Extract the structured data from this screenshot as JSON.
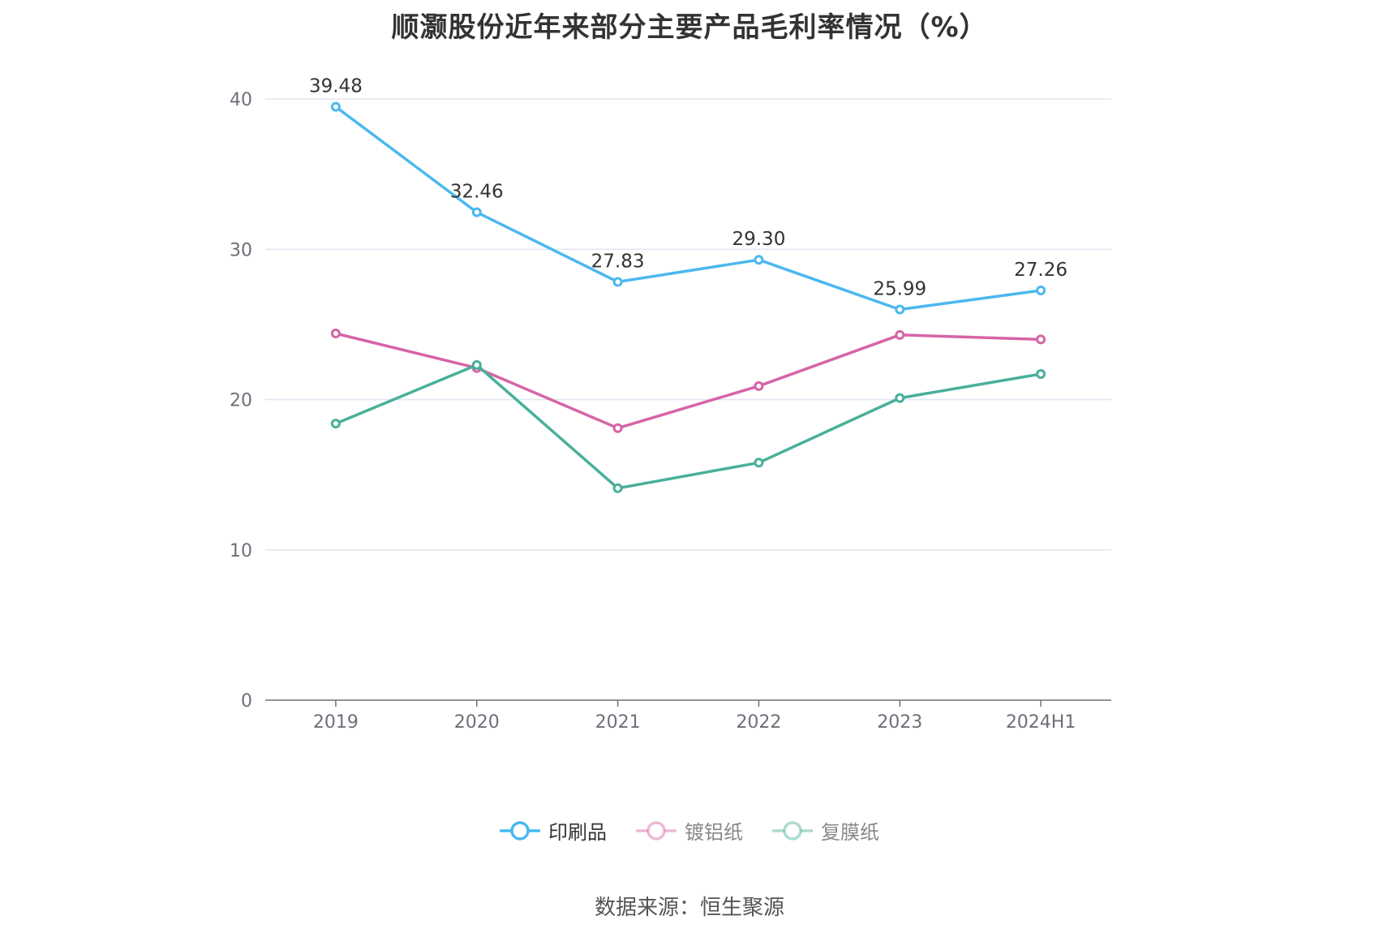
{
  "chart_data": {
    "type": "line",
    "title": "顺灏股份近年来部分主要产品毛利率情况（%）",
    "categories": [
      "2019",
      "2020",
      "2021",
      "2022",
      "2023",
      "2024H1"
    ],
    "ylim": [
      0,
      40
    ],
    "yticks": [
      0,
      10,
      20,
      30,
      40
    ],
    "grid": true,
    "legend_position": "bottom",
    "series": [
      {
        "name": "印刷品",
        "color": "#4bb8f0",
        "values": [
          39.48,
          32.46,
          27.83,
          29.3,
          25.99,
          27.26
        ],
        "labels": [
          "39.48",
          "32.46",
          "27.83",
          "29.30",
          "25.99",
          "27.26"
        ],
        "active": true
      },
      {
        "name": "镀铝纸",
        "color": "#d664a7",
        "values": [
          24.4,
          22.1,
          18.1,
          20.9,
          24.3,
          24.0
        ],
        "active": false
      },
      {
        "name": "复膜纸",
        "color": "#48b09a",
        "values": [
          18.4,
          22.3,
          14.1,
          15.8,
          20.1,
          21.7
        ],
        "active": false
      }
    ],
    "source": "数据来源：恒生聚源"
  }
}
